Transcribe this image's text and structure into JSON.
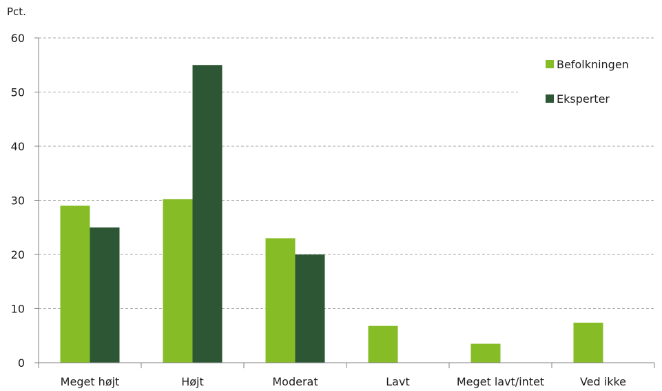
{
  "chart_data": {
    "type": "bar",
    "title": "",
    "xlabel": "",
    "ylabel": "Pct.",
    "ylim": [
      0,
      60
    ],
    "yticks": [
      0,
      10,
      20,
      30,
      40,
      50,
      60
    ],
    "grid": true,
    "legend_position": "top-right",
    "categories": [
      "Meget højt",
      "Højt",
      "Moderat",
      "Lavt",
      "Meget lavt/intet",
      "Ved ikke"
    ],
    "series": [
      {
        "name": "Befolkningen",
        "color": "#86bc25",
        "values": [
          29,
          30.2,
          23,
          6.8,
          3.5,
          7.4
        ]
      },
      {
        "name": "Eksperter",
        "color": "#2c5634",
        "values": [
          25,
          55,
          20,
          null,
          null,
          null
        ]
      }
    ]
  }
}
